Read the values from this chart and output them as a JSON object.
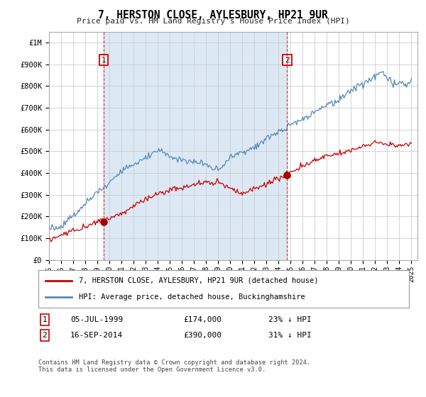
{
  "title": "7, HERSTON CLOSE, AYLESBURY, HP21 9UR",
  "subtitle": "Price paid vs. HM Land Registry's House Price Index (HPI)",
  "background_color": "#ffffff",
  "plot_bg_color": "#ffffff",
  "grid_color": "#cccccc",
  "fill_color": "#dce9f5",
  "legend_label_red": "7, HERSTON CLOSE, AYLESBURY, HP21 9UR (detached house)",
  "legend_label_blue": "HPI: Average price, detached house, Buckinghamshire",
  "annotation1": {
    "num": "1",
    "date": "05-JUL-1999",
    "price": "£174,000",
    "pct": "23% ↓ HPI"
  },
  "annotation2": {
    "num": "2",
    "date": "16-SEP-2014",
    "price": "£390,000",
    "pct": "31% ↓ HPI"
  },
  "footnote": "Contains HM Land Registry data © Crown copyright and database right 2024.\nThis data is licensed under the Open Government Licence v3.0.",
  "red_line_color": "#cc0000",
  "blue_line_color": "#5588bb",
  "vline_color": "#cc0000",
  "marker_color": "#aa0000",
  "ylim_max": 1050000,
  "ytick_values": [
    0,
    100000,
    200000,
    300000,
    400000,
    500000,
    600000,
    700000,
    800000,
    900000,
    1000000
  ],
  "ytick_labels": [
    "£0",
    "£100K",
    "£200K",
    "£300K",
    "£400K",
    "£500K",
    "£600K",
    "£700K",
    "£800K",
    "£900K",
    "£1M"
  ],
  "purchase1_year": 1999.54,
  "purchase1_price": 174000,
  "purchase2_year": 2014.71,
  "purchase2_price": 390000
}
